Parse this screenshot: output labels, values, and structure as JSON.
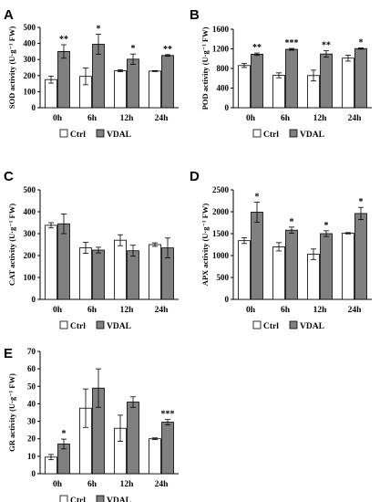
{
  "legend": {
    "ctrl_label": "Ctrl",
    "vdal_label": "VDAL"
  },
  "colors": {
    "ctrl": "#ffffff",
    "vdal": "#808080",
    "stroke": "#000000"
  },
  "chart_data": [
    {
      "panel": "A",
      "type": "bar",
      "categories": [
        "0h",
        "6h",
        "12h",
        "24h"
      ],
      "ylabel": "SOD activity (U·g⁻¹ FW)",
      "ylim": [
        0,
        500
      ],
      "yticks": [
        0,
        100,
        200,
        300,
        400,
        500
      ],
      "series": [
        {
          "name": "Ctrl",
          "values": [
            175,
            195,
            230,
            228
          ],
          "errors": [
            22,
            52,
            6,
            3
          ]
        },
        {
          "name": "VDAL",
          "values": [
            350,
            395,
            302,
            325
          ],
          "errors": [
            42,
            62,
            32,
            5
          ]
        }
      ],
      "significance": [
        "**",
        "*",
        "*",
        "**"
      ]
    },
    {
      "panel": "B",
      "type": "bar",
      "categories": [
        "0h",
        "6h",
        "12h",
        "24h"
      ],
      "ylabel": "POD activity (U·g⁻¹ FW)",
      "ylim": [
        0,
        1600
      ],
      "yticks": [
        0,
        400,
        800,
        1200,
        1600
      ],
      "series": [
        {
          "name": "Ctrl",
          "values": [
            860,
            660,
            655,
            1010
          ],
          "errors": [
            40,
            50,
            110,
            60
          ]
        },
        {
          "name": "VDAL",
          "values": [
            1090,
            1190,
            1095,
            1205
          ],
          "errors": [
            25,
            18,
            65,
            12
          ]
        }
      ],
      "significance": [
        "**",
        "***",
        "**",
        "*"
      ]
    },
    {
      "panel": "C",
      "type": "bar",
      "categories": [
        "0h",
        "6h",
        "12h",
        "24h"
      ],
      "ylabel": "CAT activity (U·g⁻¹ FW)",
      "ylim": [
        0,
        500
      ],
      "yticks": [
        0,
        100,
        200,
        300,
        400,
        500
      ],
      "series": [
        {
          "name": "Ctrl",
          "values": [
            338,
            235,
            270,
            250
          ],
          "errors": [
            12,
            25,
            25,
            8
          ]
        },
        {
          "name": "VDAL",
          "values": [
            345,
            225,
            222,
            235
          ],
          "errors": [
            45,
            13,
            25,
            45
          ]
        }
      ],
      "significance": [
        "",
        "",
        "",
        ""
      ]
    },
    {
      "panel": "D",
      "type": "bar",
      "categories": [
        "0h",
        "6h",
        "12h",
        "24h"
      ],
      "ylabel": "APX activity (U·g⁻¹ FW)",
      "ylim": [
        0,
        2500
      ],
      "yticks": [
        0,
        500,
        1000,
        1500,
        2000,
        2500
      ],
      "series": [
        {
          "name": "Ctrl",
          "values": [
            1340,
            1200,
            1030,
            1510
          ],
          "errors": [
            65,
            95,
            120,
            15
          ]
        },
        {
          "name": "VDAL",
          "values": [
            1990,
            1580,
            1500,
            1960
          ],
          "errors": [
            230,
            70,
            65,
            140
          ]
        }
      ],
      "significance": [
        "*",
        "*",
        "*",
        "*"
      ]
    },
    {
      "panel": "E",
      "type": "bar",
      "categories": [
        "0h",
        "6h",
        "12h",
        "24h"
      ],
      "ylabel": "GR activity (U·g⁻¹ FW)",
      "ylim": [
        0,
        70
      ],
      "yticks": [
        0,
        10,
        20,
        30,
        40,
        50,
        60,
        70
      ],
      "series": [
        {
          "name": "Ctrl",
          "values": [
            9.5,
            37.5,
            26,
            20
          ],
          "errors": [
            1.5,
            11,
            7.5,
            0.5
          ]
        },
        {
          "name": "VDAL",
          "values": [
            17,
            49,
            41,
            29.5
          ],
          "errors": [
            2.8,
            11,
            3,
            1.5
          ]
        }
      ],
      "significance": [
        "*",
        "",
        "",
        "***"
      ]
    }
  ]
}
